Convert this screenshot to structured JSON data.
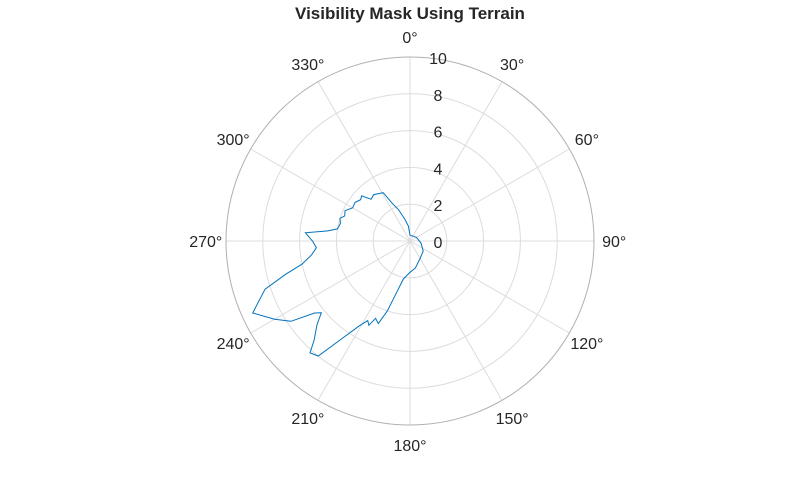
{
  "chart_data": {
    "type": "line",
    "projection": "polar",
    "title": "Visibility Mask Using Terrain",
    "theta_zero_location": "top",
    "theta_direction": "clockwise",
    "theta_unit": "degrees",
    "r_lim": [
      0,
      10
    ],
    "r_ticks": [
      0,
      2,
      4,
      6,
      8,
      10
    ],
    "r_tick_labels": [
      "0",
      "2",
      "4",
      "6",
      "8",
      "10"
    ],
    "theta_ticks": [
      0,
      30,
      60,
      90,
      120,
      150,
      180,
      210,
      240,
      270,
      300,
      330
    ],
    "theta_tick_labels": [
      "0°",
      "30°",
      "60°",
      "90°",
      "120°",
      "150°",
      "180°",
      "210°",
      "240°",
      "270°",
      "300°",
      "330°"
    ],
    "grid": true,
    "series_color": "#0072BD",
    "theta": [
      0,
      20,
      60,
      100,
      127,
      150,
      169,
      180,
      190,
      195,
      198,
      201,
      204,
      206,
      208,
      211,
      215,
      218.6,
      221.8,
      224,
      228,
      231,
      233,
      236,
      240,
      245.4,
      248,
      251.6,
      255,
      257.9,
      262,
      265.9,
      270,
      274.5,
      277,
      279.5,
      284,
      288,
      291,
      295,
      300,
      305,
      310,
      313,
      317,
      322,
      326,
      331,
      334.5,
      340,
      347,
      354,
      360
    ],
    "r": [
      0.3,
      0.3,
      0.4,
      0.6,
      0.9,
      1.1,
      1.5,
      1.7,
      2.1,
      3.0,
      4.0,
      4.8,
      4.6,
      5.1,
      4.9,
      5.4,
      6.5,
      8.0,
      8.15,
      7.5,
      6.8,
      6.2,
      6.5,
      7.8,
      8.5,
      9.4,
      8.9,
      8.3,
      7.0,
      6.0,
      5.4,
      5.1,
      5.3,
      5.7,
      4.5,
      4.0,
      3.9,
      4.0,
      3.8,
      3.9,
      3.6,
      3.65,
      3.5,
      3.6,
      3.1,
      3.2,
      3.1,
      3.0,
      2.3,
      1.8,
      1.2,
      0.8,
      0.3
    ]
  }
}
